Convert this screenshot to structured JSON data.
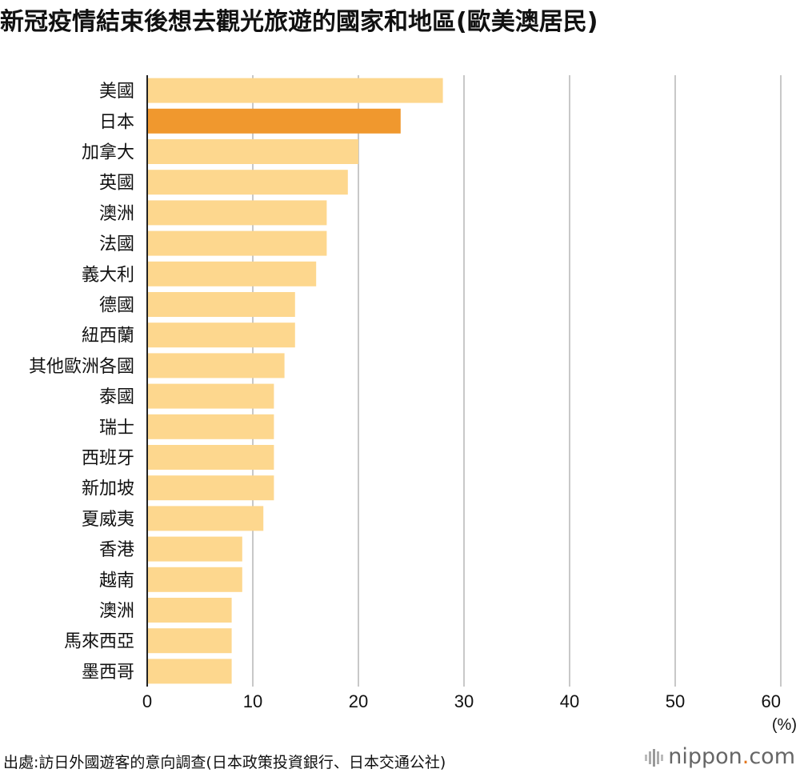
{
  "title": "新冠疫情結束後想去觀光旅遊的國家和地區(歐美澳居民)",
  "source": "出處:訪日外國遊客的意向調查(日本政策投資銀行、日本交通公社)",
  "brand": {
    "prefix": "nippon",
    "dot": ".",
    "suffix": "com"
  },
  "colors": {
    "bar": "#fdd78e",
    "highlight": "#f0982e",
    "grid": "#c8c8c8",
    "axis": "#222222",
    "brand_dot": "#e3761e"
  },
  "chart_data": {
    "type": "bar",
    "orientation": "horizontal",
    "categories": [
      "美國",
      "日本",
      "加拿大",
      "英國",
      "澳洲",
      "法國",
      "義大利",
      "德國",
      "紐西蘭",
      "其他歐洲各國",
      "泰國",
      "瑞士",
      "西班牙",
      "新加坡",
      "夏威夷",
      "香港",
      "越南",
      "澳洲",
      "馬來西亞",
      "墨西哥"
    ],
    "values": [
      28,
      24,
      20,
      19,
      17,
      17,
      16,
      14,
      14,
      13,
      12,
      12,
      12,
      12,
      11,
      9,
      9,
      8,
      8,
      8
    ],
    "highlight_category": "日本",
    "xlim": [
      0,
      60
    ],
    "xticks": [
      0,
      10,
      20,
      30,
      40,
      50,
      60
    ],
    "unit_label": "(%)",
    "grid": true
  }
}
